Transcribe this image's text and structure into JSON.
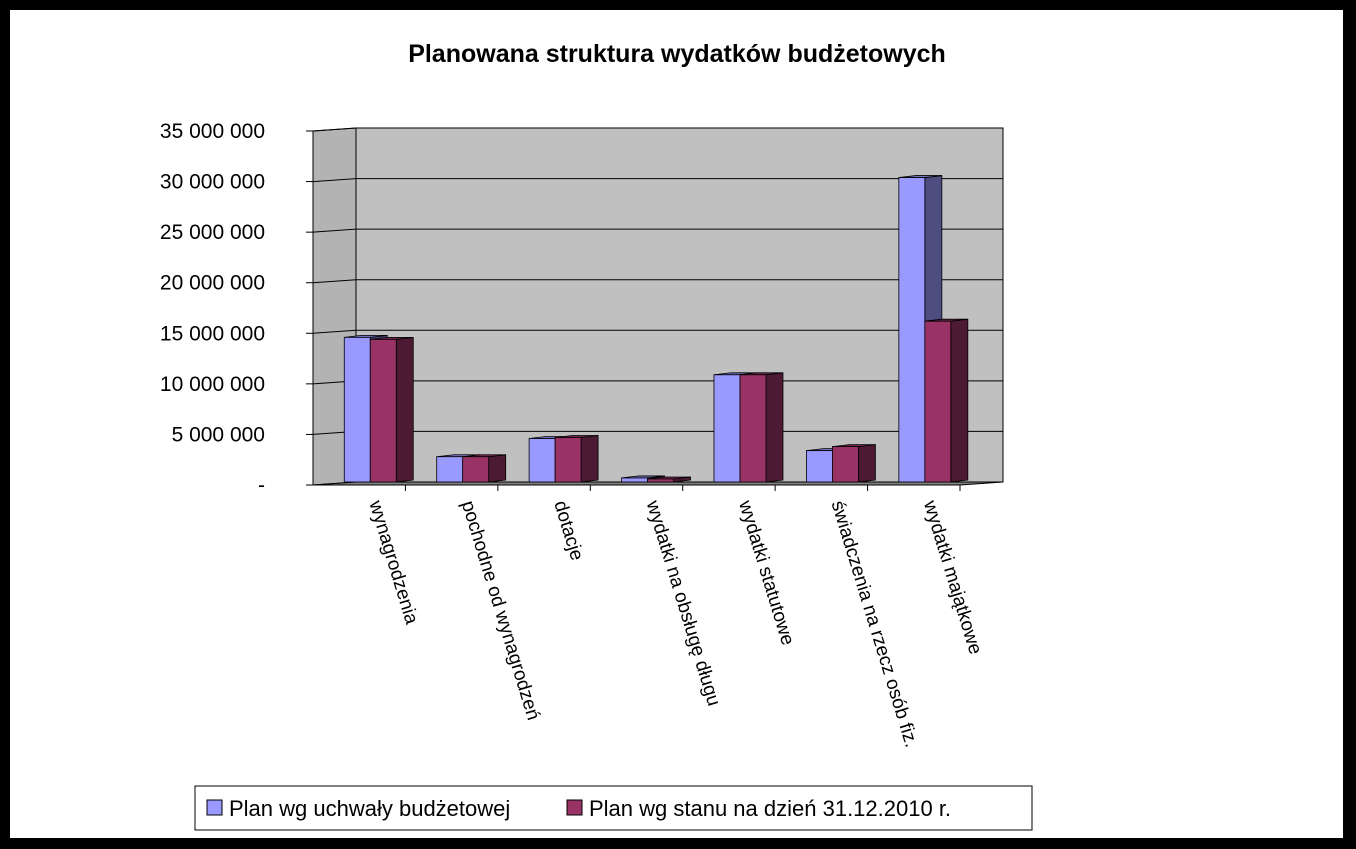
{
  "chart_data": {
    "type": "bar",
    "title": "Planowana struktura wydatków budżetowych",
    "xlabel": "",
    "ylabel": "",
    "ylim": [
      0,
      35000000
    ],
    "yticks": [
      {
        "value": 0,
        "label": "-"
      },
      {
        "value": 5000000,
        "label": "5 000 000"
      },
      {
        "value": 10000000,
        "label": "10 000 000"
      },
      {
        "value": 15000000,
        "label": "15 000 000"
      },
      {
        "value": 20000000,
        "label": "20 000 000"
      },
      {
        "value": 25000000,
        "label": "25 000 000"
      },
      {
        "value": 30000000,
        "label": "30 000 000"
      },
      {
        "value": 35000000,
        "label": "35 000 000"
      }
    ],
    "categories": [
      "wynagrodzenia",
      "pochodne od wynagrodzeń",
      "dotacje",
      "wydatki na obsługę długu",
      "wydatki statutowe",
      "świadczenia na rzecz osób fiz.",
      "wydatki majątkowe"
    ],
    "series": [
      {
        "name": "Plan wg uchwały budżetowej",
        "color": "#9999ff",
        "values": [
          14300000,
          2500000,
          4300000,
          400000,
          10600000,
          3100000,
          30100000
        ]
      },
      {
        "name": "Plan wg stanu na dzień 31.12.2010 r.",
        "color": "#993366",
        "values": [
          14100000,
          2500000,
          4400000,
          300000,
          10600000,
          3500000,
          15900000
        ]
      }
    ],
    "grid": true,
    "legend_position": "bottom",
    "colors": {
      "wall": "#c0c0c0",
      "floor": "#808080",
      "gridline": "#000000",
      "background": "#ffffff",
      "frame": "#000000"
    }
  }
}
